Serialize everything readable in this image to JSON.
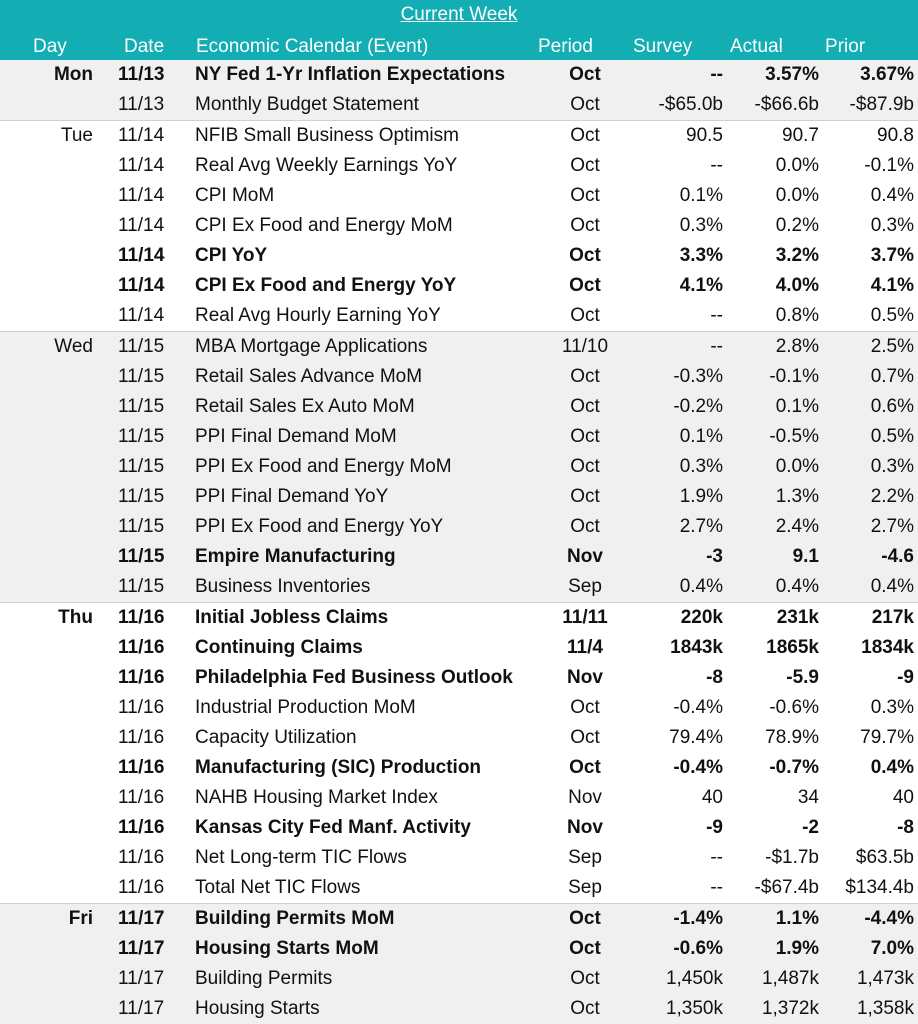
{
  "header": {
    "title": "Current Week",
    "columns": {
      "day": "Day",
      "date": "Date",
      "event": "Economic Calendar (Event)",
      "period": "Period",
      "survey": "Survey",
      "actual": "Actual",
      "prior": "Prior"
    }
  },
  "rows": [
    {
      "day": "Mon",
      "date": "11/13",
      "event": "NY Fed 1-Yr Inflation Expectations",
      "period": "Oct",
      "survey": "--",
      "actual": "3.57%",
      "prior": "3.67%",
      "bold": true,
      "shade": true,
      "first": true
    },
    {
      "day": "",
      "date": "11/13",
      "event": "Monthly Budget Statement",
      "period": "Oct",
      "survey": "-$65.0b",
      "actual": "-$66.6b",
      "prior": "-$87.9b",
      "bold": false,
      "shade": true,
      "first": false
    },
    {
      "day": "Tue",
      "date": "11/14",
      "event": "NFIB Small Business Optimism",
      "period": "Oct",
      "survey": "90.5",
      "actual": "90.7",
      "prior": "90.8",
      "bold": false,
      "shade": false,
      "first": true
    },
    {
      "day": "",
      "date": "11/14",
      "event": "Real Avg Weekly Earnings YoY",
      "period": "Oct",
      "survey": "--",
      "actual": "0.0%",
      "prior": "-0.1%",
      "bold": false,
      "shade": false,
      "first": false
    },
    {
      "day": "",
      "date": "11/14",
      "event": "CPI MoM",
      "period": "Oct",
      "survey": "0.1%",
      "actual": "0.0%",
      "prior": "0.4%",
      "bold": false,
      "shade": false,
      "first": false
    },
    {
      "day": "",
      "date": "11/14",
      "event": "CPI Ex Food and Energy MoM",
      "period": "Oct",
      "survey": "0.3%",
      "actual": "0.2%",
      "prior": "0.3%",
      "bold": false,
      "shade": false,
      "first": false
    },
    {
      "day": "",
      "date": "11/14",
      "event": "CPI YoY",
      "period": "Oct",
      "survey": "3.3%",
      "actual": "3.2%",
      "prior": "3.7%",
      "bold": true,
      "shade": false,
      "first": false
    },
    {
      "day": "",
      "date": "11/14",
      "event": "CPI Ex Food and Energy YoY",
      "period": "Oct",
      "survey": "4.1%",
      "actual": "4.0%",
      "prior": "4.1%",
      "bold": true,
      "shade": false,
      "first": false
    },
    {
      "day": "",
      "date": "11/14",
      "event": "Real Avg Hourly Earning YoY",
      "period": "Oct",
      "survey": "--",
      "actual": "0.8%",
      "prior": "0.5%",
      "bold": false,
      "shade": false,
      "first": false
    },
    {
      "day": "Wed",
      "date": "11/15",
      "event": "MBA Mortgage Applications",
      "period": "11/10",
      "survey": "--",
      "actual": "2.8%",
      "prior": "2.5%",
      "bold": false,
      "shade": true,
      "first": true
    },
    {
      "day": "",
      "date": "11/15",
      "event": "Retail Sales Advance MoM",
      "period": "Oct",
      "survey": "-0.3%",
      "actual": "-0.1%",
      "prior": "0.7%",
      "bold": false,
      "shade": true,
      "first": false
    },
    {
      "day": "",
      "date": "11/15",
      "event": "Retail Sales Ex Auto MoM",
      "period": "Oct",
      "survey": "-0.2%",
      "actual": "0.1%",
      "prior": "0.6%",
      "bold": false,
      "shade": true,
      "first": false
    },
    {
      "day": "",
      "date": "11/15",
      "event": "PPI Final Demand MoM",
      "period": "Oct",
      "survey": "0.1%",
      "actual": "-0.5%",
      "prior": "0.5%",
      "bold": false,
      "shade": true,
      "first": false
    },
    {
      "day": "",
      "date": "11/15",
      "event": "PPI Ex Food and Energy MoM",
      "period": "Oct",
      "survey": "0.3%",
      "actual": "0.0%",
      "prior": "0.3%",
      "bold": false,
      "shade": true,
      "first": false
    },
    {
      "day": "",
      "date": "11/15",
      "event": "PPI Final Demand YoY",
      "period": "Oct",
      "survey": "1.9%",
      "actual": "1.3%",
      "prior": "2.2%",
      "bold": false,
      "shade": true,
      "first": false
    },
    {
      "day": "",
      "date": "11/15",
      "event": "PPI Ex Food and Energy YoY",
      "period": "Oct",
      "survey": "2.7%",
      "actual": "2.4%",
      "prior": "2.7%",
      "bold": false,
      "shade": true,
      "first": false
    },
    {
      "day": "",
      "date": "11/15",
      "event": "Empire Manufacturing",
      "period": "Nov",
      "survey": "-3",
      "actual": "9.1",
      "prior": "-4.6",
      "bold": true,
      "shade": true,
      "first": false
    },
    {
      "day": "",
      "date": "11/15",
      "event": "Business Inventories",
      "period": "Sep",
      "survey": "0.4%",
      "actual": "0.4%",
      "prior": "0.4%",
      "bold": false,
      "shade": true,
      "first": false
    },
    {
      "day": "Thu",
      "date": "11/16",
      "event": "Initial Jobless Claims",
      "period": "11/11",
      "survey": "220k",
      "actual": "231k",
      "prior": "217k",
      "bold": true,
      "shade": false,
      "first": true
    },
    {
      "day": "",
      "date": "11/16",
      "event": "Continuing Claims",
      "period": "11/4",
      "survey": "1843k",
      "actual": "1865k",
      "prior": "1834k",
      "bold": true,
      "shade": false,
      "first": false
    },
    {
      "day": "",
      "date": "11/16",
      "event": "Philadelphia Fed Business Outlook",
      "period": "Nov",
      "survey": "-8",
      "actual": "-5.9",
      "prior": "-9",
      "bold": true,
      "shade": false,
      "first": false
    },
    {
      "day": "",
      "date": "11/16",
      "event": "Industrial Production MoM",
      "period": "Oct",
      "survey": "-0.4%",
      "actual": "-0.6%",
      "prior": "0.3%",
      "bold": false,
      "shade": false,
      "first": false
    },
    {
      "day": "",
      "date": "11/16",
      "event": "Capacity Utilization",
      "period": "Oct",
      "survey": "79.4%",
      "actual": "78.9%",
      "prior": "79.7%",
      "bold": false,
      "shade": false,
      "first": false
    },
    {
      "day": "",
      "date": "11/16",
      "event": "Manufacturing (SIC) Production",
      "period": "Oct",
      "survey": "-0.4%",
      "actual": "-0.7%",
      "prior": "0.4%",
      "bold": true,
      "shade": false,
      "first": false
    },
    {
      "day": "",
      "date": "11/16",
      "event": "NAHB Housing Market Index",
      "period": "Nov",
      "survey": "40",
      "actual": "34",
      "prior": "40",
      "bold": false,
      "shade": false,
      "first": false
    },
    {
      "day": "",
      "date": "11/16",
      "event": "Kansas City Fed Manf. Activity",
      "period": "Nov",
      "survey": "-9",
      "actual": "-2",
      "prior": "-8",
      "bold": true,
      "shade": false,
      "first": false
    },
    {
      "day": "",
      "date": "11/16",
      "event": "Net Long-term TIC Flows",
      "period": "Sep",
      "survey": "--",
      "actual": "-$1.7b",
      "prior": "$63.5b",
      "bold": false,
      "shade": false,
      "first": false
    },
    {
      "day": "",
      "date": "11/16",
      "event": "Total Net TIC Flows",
      "period": "Sep",
      "survey": "--",
      "actual": "-$67.4b",
      "prior": "$134.4b",
      "bold": false,
      "shade": false,
      "first": false
    },
    {
      "day": "Fri",
      "date": "11/17",
      "event": "Building Permits MoM",
      "period": "Oct",
      "survey": "-1.4%",
      "actual": "1.1%",
      "prior": "-4.4%",
      "bold": true,
      "shade": true,
      "first": true
    },
    {
      "day": "",
      "date": "11/17",
      "event": "Housing Starts MoM",
      "period": "Oct",
      "survey": "-0.6%",
      "actual": "1.9%",
      "prior": "7.0%",
      "bold": true,
      "shade": true,
      "first": false
    },
    {
      "day": "",
      "date": "11/17",
      "event": "Building Permits",
      "period": "Oct",
      "survey": "1,450k",
      "actual": "1,487k",
      "prior": "1,473k",
      "bold": false,
      "shade": true,
      "first": false
    },
    {
      "day": "",
      "date": "11/17",
      "event": "Housing Starts",
      "period": "Oct",
      "survey": "1,350k",
      "actual": "1,372k",
      "prior": "1,358k",
      "bold": false,
      "shade": true,
      "first": false
    }
  ]
}
